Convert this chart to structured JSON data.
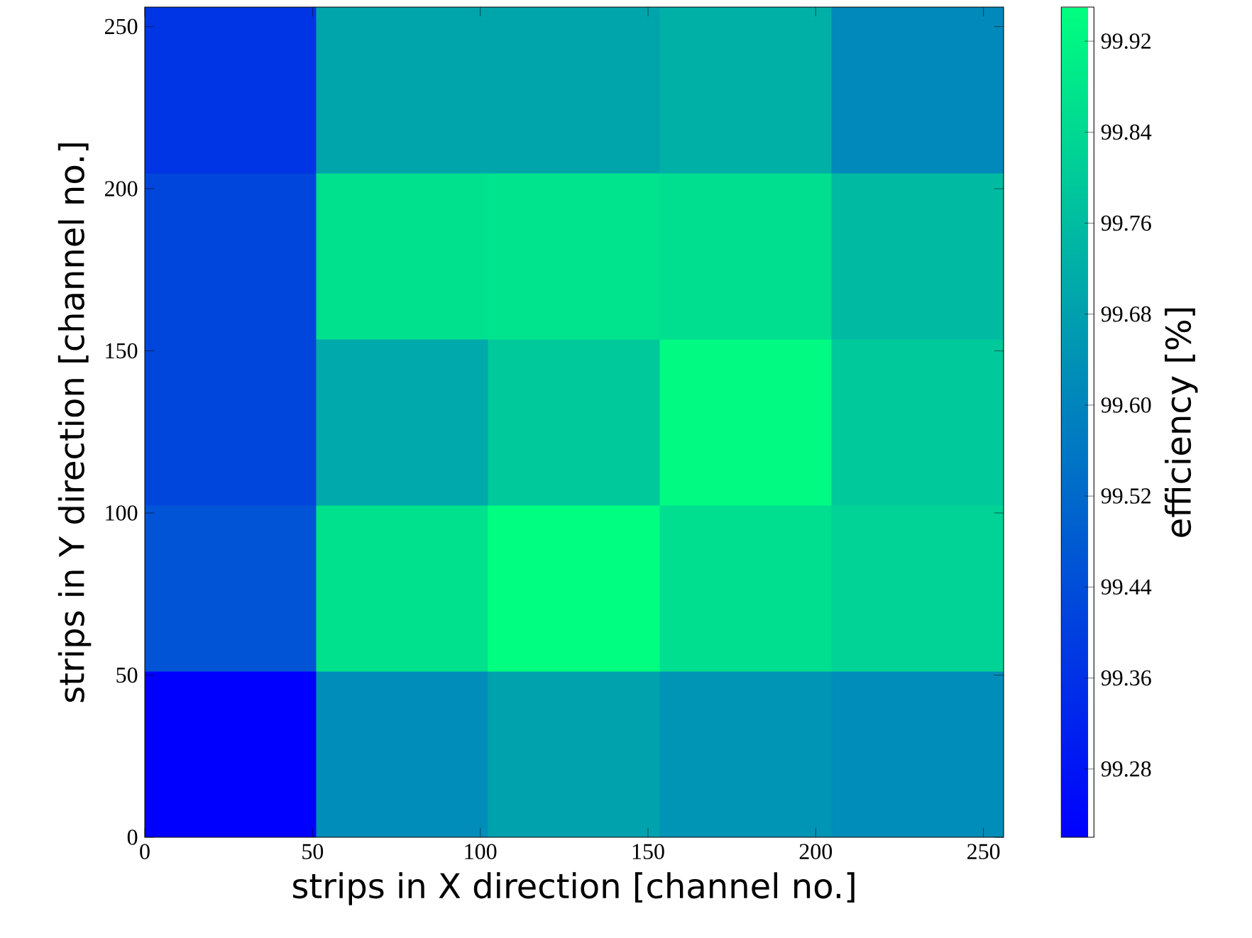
{
  "chart_data": {
    "type": "heatmap",
    "xlabel": "strips in X direction [channel no.]",
    "ylabel": "strips in Y direction [channel no.]",
    "clabel": "efficiency [%]",
    "xlim": [
      0,
      256
    ],
    "xticks": [
      0,
      50,
      100,
      150,
      200,
      250
    ],
    "ylim": [
      0,
      256
    ],
    "yticks": [
      0,
      50,
      100,
      150,
      200,
      250
    ],
    "cells": [
      [
        99.37,
        99.69,
        99.69,
        99.72,
        99.61
      ],
      [
        99.42,
        99.86,
        99.87,
        99.85,
        99.75
      ],
      [
        99.42,
        99.7,
        99.79,
        99.93,
        99.79
      ],
      [
        99.46,
        99.86,
        99.95,
        99.85,
        99.82
      ],
      [
        99.22,
        99.62,
        99.68,
        99.64,
        99.62
      ]
    ],
    "clim": [
      99.22,
      99.95
    ],
    "cticks": [
      99.28,
      99.36,
      99.44,
      99.52,
      {
        "value": 99.6,
        "label": "99.60"
      },
      99.68,
      99.76,
      99.84,
      99.92
    ]
  }
}
